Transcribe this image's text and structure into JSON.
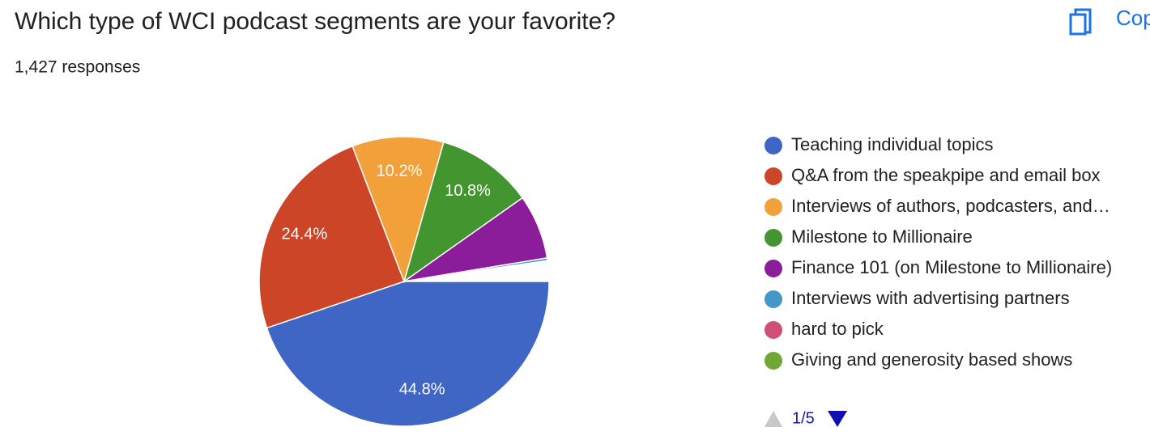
{
  "chart_data": {
    "type": "pie",
    "title": "Which type of WCI podcast segments are your favorite?",
    "subtitle": "1,427 responses",
    "copy_button": "Cop",
    "pagination": "1/5",
    "series": [
      {
        "name": "Teaching individual topics",
        "color": "#3f65c5",
        "value": 44.8,
        "value_label": "44.8%"
      },
      {
        "name": "Q&A from the speakpipe and email box",
        "color": "#cc4527",
        "value": 24.4,
        "value_label": "24.4%"
      },
      {
        "name": "Interviews of authors, podcasters, and…",
        "color": "#f2a13a",
        "value": 10.2,
        "value_label": "10.2%"
      },
      {
        "name": "Milestone to Millionaire",
        "color": "#43962f",
        "value": 10.8,
        "value_label": "10.8%"
      },
      {
        "name": "Finance 101 (on Milestone to Millionaire)",
        "color": "#8c1d9a",
        "value": 7.2
      },
      {
        "name": "Interviews with advertising partners",
        "color": "#4398c8",
        "value": 0.3
      },
      {
        "name": "hard to pick",
        "color": "#d04f77",
        "value": 0.1
      },
      {
        "name": "Giving and generosity based shows",
        "color": "#6fa735",
        "value": 0.1
      }
    ]
  }
}
